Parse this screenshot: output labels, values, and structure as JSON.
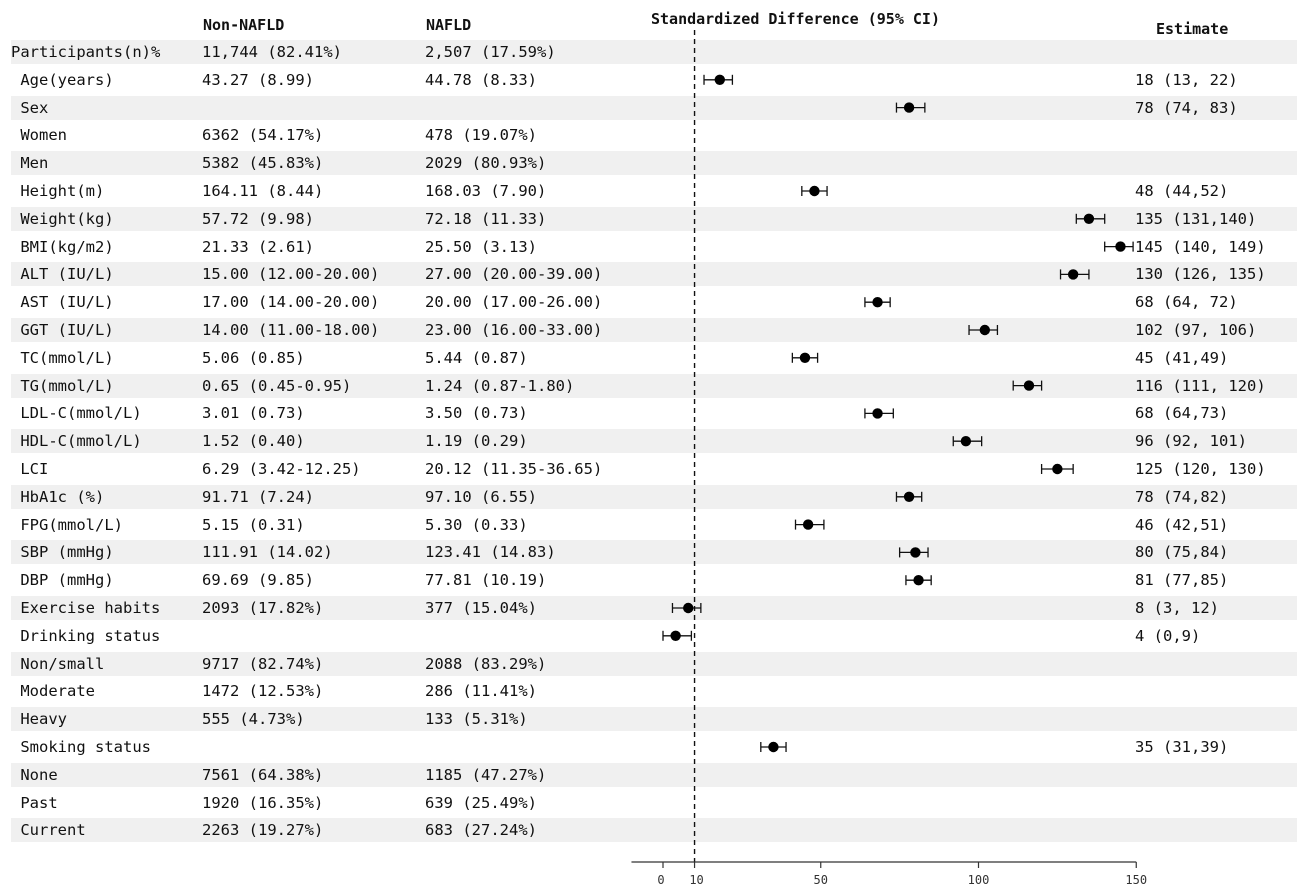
{
  "headers": {
    "non_nafld": "Non-NAFLD",
    "nafld": "NAFLD",
    "std_diff": "Standardized Difference (95% CI)",
    "estimate": "Estimate"
  },
  "rows": [
    {
      "label": "Participants(n)%",
      "non": "11,744 (82.41%)",
      "naf": "2,507 (17.59%)",
      "est": ""
    },
    {
      "label": " Age(years)",
      "non": "43.27 (8.99)",
      "naf": "44.78 (8.33)",
      "est": "18 (13, 22)"
    },
    {
      "label": " Sex",
      "non": "",
      "naf": "",
      "est": "78 (74, 83)"
    },
    {
      "label": " Women",
      "non": "6362 (54.17%)",
      "naf": "478 (19.07%)",
      "est": ""
    },
    {
      "label": " Men",
      "non": "5382 (45.83%)",
      "naf": "2029 (80.93%)",
      "est": ""
    },
    {
      "label": " Height(m)",
      "non": "164.11 (8.44)",
      "naf": "168.03 (7.90)",
      "est": "48 (44,52)"
    },
    {
      "label": " Weight(kg)",
      "non": "57.72 (9.98)",
      "naf": "72.18 (11.33)",
      "est": "135 (131,140)"
    },
    {
      "label": " BMI(kg/m2)",
      "non": "21.33 (2.61)",
      "naf": "25.50 (3.13)",
      "est": "145 (140, 149)"
    },
    {
      "label": " ALT (IU/L)",
      "non": "15.00 (12.00-20.00)",
      "naf": "27.00 (20.00-39.00)",
      "est": "130 (126, 135)"
    },
    {
      "label": " AST (IU/L)",
      "non": "17.00 (14.00-20.00)",
      "naf": "20.00 (17.00-26.00)",
      "est": "68 (64, 72)"
    },
    {
      "label": " GGT (IU/L)",
      "non": "14.00 (11.00-18.00)",
      "naf": "23.00 (16.00-33.00)",
      "est": "102 (97, 106)"
    },
    {
      "label": " TC(mmol/L)",
      "non": "5.06 (0.85)",
      "naf": "5.44 (0.87)",
      "est": "45 (41,49)"
    },
    {
      "label": " TG(mmol/L)",
      "non": "0.65 (0.45-0.95)",
      "naf": "1.24 (0.87-1.80)",
      "est": "116 (111, 120)"
    },
    {
      "label": " LDL-C(mmol/L)",
      "non": "3.01 (0.73)",
      "naf": "3.50 (0.73)",
      "est": "68 (64,73)"
    },
    {
      "label": " HDL-C(mmol/L)",
      "non": "1.52 (0.40)",
      "naf": "1.19 (0.29)",
      "est": "96 (92, 101)"
    },
    {
      "label": " LCI",
      "non": "6.29 (3.42-12.25)",
      "naf": "20.12 (11.35-36.65)",
      "est": "125 (120, 130)"
    },
    {
      "label": " HbA1c (%)",
      "non": "91.71 (7.24)",
      "naf": "97.10 (6.55)",
      "est": "78 (74,82)"
    },
    {
      "label": " FPG(mmol/L)",
      "non": "5.15 (0.31)",
      "naf": "5.30 (0.33)",
      "est": "46 (42,51)"
    },
    {
      "label": " SBP (mmHg)",
      "non": "111.91 (14.02)",
      "naf": "123.41 (14.83)",
      "est": "80 (75,84)"
    },
    {
      "label": " DBP (mmHg)",
      "non": "69.69 (9.85)",
      "naf": "77.81 (10.19)",
      "est": "81 (77,85)"
    },
    {
      "label": " Exercise habits",
      "non": "2093 (17.82%)",
      "naf": "377 (15.04%)",
      "est": "8 (3, 12)"
    },
    {
      "label": " Drinking status",
      "non": "",
      "naf": "",
      "est": "4 (0,9)"
    },
    {
      "label": " Non/small",
      "non": "9717 (82.74%)",
      "naf": "2088 (83.29%)",
      "est": ""
    },
    {
      "label": " Moderate",
      "non": "1472 (12.53%)",
      "naf": "286 (11.41%)",
      "est": ""
    },
    {
      "label": " Heavy",
      "non": "555 (4.73%)",
      "naf": "133 (5.31%)",
      "est": ""
    },
    {
      "label": " Smoking status",
      "non": "",
      "naf": "",
      "est": "35 (31,39)"
    },
    {
      "label": " None",
      "non": "7561 (64.38%)",
      "naf": "1185 (47.27%)",
      "est": ""
    },
    {
      "label": " Past",
      "non": "1920 (16.35%)",
      "naf": "639 (25.49%)",
      "est": ""
    },
    {
      "label": " Current",
      "non": "2263 (19.27%)",
      "naf": "683 (27.24%)",
      "est": ""
    }
  ],
  "chart_data": {
    "type": "forest",
    "title": "Standardized Difference (95% CI)",
    "xlim": [
      -10,
      150
    ],
    "x_ticks": [
      0,
      10,
      50,
      100,
      150
    ],
    "reference_line": 10,
    "reference_style": "dashed",
    "points": [
      {
        "row": 1,
        "label": "Age(years)",
        "est": 18,
        "lo": 13,
        "hi": 22
      },
      {
        "row": 2,
        "label": "Sex",
        "est": 78,
        "lo": 74,
        "hi": 83
      },
      {
        "row": 5,
        "label": "Height(m)",
        "est": 48,
        "lo": 44,
        "hi": 52
      },
      {
        "row": 6,
        "label": "Weight(kg)",
        "est": 135,
        "lo": 131,
        "hi": 140
      },
      {
        "row": 7,
        "label": "BMI(kg/m2)",
        "est": 145,
        "lo": 140,
        "hi": 149
      },
      {
        "row": 8,
        "label": "ALT (IU/L)",
        "est": 130,
        "lo": 126,
        "hi": 135
      },
      {
        "row": 9,
        "label": "AST (IU/L)",
        "est": 68,
        "lo": 64,
        "hi": 72
      },
      {
        "row": 10,
        "label": "GGT (IU/L)",
        "est": 102,
        "lo": 97,
        "hi": 106
      },
      {
        "row": 11,
        "label": "TC(mmol/L)",
        "est": 45,
        "lo": 41,
        "hi": 49
      },
      {
        "row": 12,
        "label": "TG(mmol/L)",
        "est": 116,
        "lo": 111,
        "hi": 120
      },
      {
        "row": 13,
        "label": "LDL-C(mmol/L)",
        "est": 68,
        "lo": 64,
        "hi": 73
      },
      {
        "row": 14,
        "label": "HDL-C(mmol/L)",
        "est": 96,
        "lo": 92,
        "hi": 101
      },
      {
        "row": 15,
        "label": "LCI",
        "est": 125,
        "lo": 120,
        "hi": 130
      },
      {
        "row": 16,
        "label": "HbA1c (%)",
        "est": 78,
        "lo": 74,
        "hi": 82
      },
      {
        "row": 17,
        "label": "FPG(mmol/L)",
        "est": 46,
        "lo": 42,
        "hi": 51
      },
      {
        "row": 18,
        "label": "SBP (mmHg)",
        "est": 80,
        "lo": 75,
        "hi": 84
      },
      {
        "row": 19,
        "label": "DBP (mmHg)",
        "est": 81,
        "lo": 77,
        "hi": 85
      },
      {
        "row": 20,
        "label": "Exercise habits",
        "est": 8,
        "lo": 3,
        "hi": 12
      },
      {
        "row": 21,
        "label": "Drinking status",
        "est": 4,
        "lo": 0,
        "hi": 9
      },
      {
        "row": 25,
        "label": "Smoking status",
        "est": 35,
        "lo": 31,
        "hi": 39
      }
    ]
  }
}
